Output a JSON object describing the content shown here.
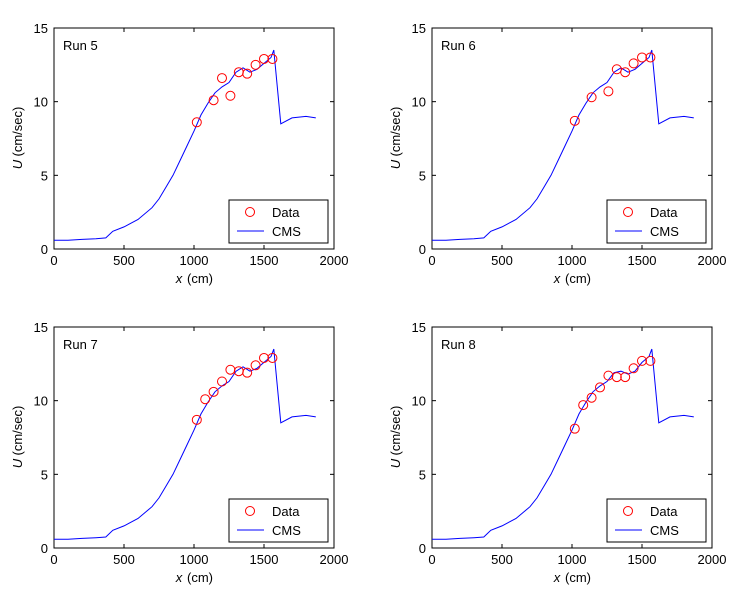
{
  "colors": {
    "data_marker": "#ff0000",
    "model_line": "#0000ff",
    "axes": "#000000",
    "background": "#ffffff"
  },
  "chart_data": [
    {
      "type": "line",
      "title": "Run 5",
      "xlabel_var": "x",
      "xlabel_unit": "(cm)",
      "ylabel_var": "U",
      "ylabel_unit": "(cm/sec)",
      "xlim": [
        0,
        2000
      ],
      "ylim": [
        0,
        15
      ],
      "xticks": [
        0,
        500,
        1000,
        1500,
        2000
      ],
      "yticks": [
        0,
        5,
        10,
        15
      ],
      "grid": false,
      "legend": {
        "position": "bottom-right",
        "entries": [
          "Data",
          "CMS"
        ]
      },
      "series": [
        {
          "name": "Data",
          "kind": "scatter",
          "marker": "circle",
          "x": [
            1020,
            1140,
            1200,
            1260,
            1320,
            1380,
            1440,
            1500,
            1560
          ],
          "y": [
            8.6,
            10.1,
            11.6,
            10.4,
            12.0,
            11.9,
            12.5,
            12.9,
            12.9
          ]
        },
        {
          "name": "CMS",
          "kind": "line",
          "x": [
            0,
            100,
            200,
            300,
            370,
            420,
            500,
            600,
            700,
            750,
            800,
            850,
            900,
            950,
            1000,
            1050,
            1100,
            1150,
            1200,
            1250,
            1300,
            1350,
            1400,
            1450,
            1500,
            1550,
            1570,
            1590,
            1620,
            1700,
            1800,
            1870
          ],
          "y": [
            0.6,
            0.6,
            0.65,
            0.7,
            0.75,
            1.2,
            1.5,
            2.0,
            2.8,
            3.4,
            4.2,
            5.0,
            6.0,
            7.0,
            8.0,
            9.1,
            9.9,
            10.6,
            11.0,
            11.3,
            12.0,
            12.3,
            12.0,
            12.2,
            12.6,
            13.0,
            13.5,
            11.5,
            8.5,
            8.9,
            9.0,
            8.9
          ]
        }
      ]
    },
    {
      "type": "line",
      "title": "Run 6",
      "xlabel_var": "x",
      "xlabel_unit": "(cm)",
      "ylabel_var": "U",
      "ylabel_unit": "(cm/sec)",
      "xlim": [
        0,
        2000
      ],
      "ylim": [
        0,
        15
      ],
      "xticks": [
        0,
        500,
        1000,
        1500,
        2000
      ],
      "yticks": [
        0,
        5,
        10,
        15
      ],
      "grid": false,
      "legend": {
        "position": "bottom-right",
        "entries": [
          "Data",
          "CMS"
        ]
      },
      "series": [
        {
          "name": "Data",
          "kind": "scatter",
          "marker": "circle",
          "x": [
            1020,
            1140,
            1260,
            1320,
            1380,
            1440,
            1500,
            1560
          ],
          "y": [
            8.7,
            10.3,
            10.7,
            12.2,
            12.0,
            12.6,
            13.0,
            13.0
          ]
        },
        {
          "name": "CMS",
          "kind": "line",
          "x": [
            0,
            100,
            200,
            300,
            370,
            420,
            500,
            600,
            700,
            750,
            800,
            850,
            900,
            950,
            1000,
            1050,
            1100,
            1150,
            1200,
            1250,
            1300,
            1350,
            1400,
            1450,
            1500,
            1550,
            1570,
            1590,
            1620,
            1700,
            1800,
            1870
          ],
          "y": [
            0.6,
            0.6,
            0.65,
            0.7,
            0.75,
            1.2,
            1.5,
            2.0,
            2.8,
            3.4,
            4.2,
            5.0,
            6.0,
            7.0,
            8.0,
            9.1,
            9.9,
            10.6,
            11.0,
            11.3,
            12.0,
            12.3,
            12.0,
            12.2,
            12.6,
            13.0,
            13.5,
            11.5,
            8.5,
            8.9,
            9.0,
            8.9
          ]
        }
      ]
    },
    {
      "type": "line",
      "title": "Run 7",
      "xlabel_var": "x",
      "xlabel_unit": "(cm)",
      "ylabel_var": "U",
      "ylabel_unit": "(cm/sec)",
      "xlim": [
        0,
        2000
      ],
      "ylim": [
        0,
        15
      ],
      "xticks": [
        0,
        500,
        1000,
        1500,
        2000
      ],
      "yticks": [
        0,
        5,
        10,
        15
      ],
      "grid": false,
      "legend": {
        "position": "bottom-right",
        "entries": [
          "Data",
          "CMS"
        ]
      },
      "series": [
        {
          "name": "Data",
          "kind": "scatter",
          "marker": "circle",
          "x": [
            1020,
            1080,
            1140,
            1200,
            1260,
            1320,
            1380,
            1440,
            1500,
            1560
          ],
          "y": [
            8.7,
            10.1,
            10.6,
            11.3,
            12.1,
            12.0,
            11.9,
            12.4,
            12.9,
            12.9
          ]
        },
        {
          "name": "CMS",
          "kind": "line",
          "x": [
            0,
            100,
            200,
            300,
            370,
            420,
            500,
            600,
            700,
            750,
            800,
            850,
            900,
            950,
            1000,
            1050,
            1100,
            1150,
            1200,
            1250,
            1300,
            1350,
            1400,
            1450,
            1500,
            1550,
            1570,
            1590,
            1620,
            1700,
            1800,
            1870
          ],
          "y": [
            0.6,
            0.6,
            0.65,
            0.7,
            0.75,
            1.2,
            1.5,
            2.0,
            2.8,
            3.4,
            4.2,
            5.0,
            6.0,
            7.0,
            8.0,
            9.1,
            9.9,
            10.6,
            11.0,
            11.3,
            12.0,
            12.3,
            12.0,
            12.2,
            12.6,
            13.0,
            13.5,
            11.5,
            8.5,
            8.9,
            9.0,
            8.9
          ]
        }
      ]
    },
    {
      "type": "line",
      "title": "Run 8",
      "xlabel_var": "x",
      "xlabel_unit": "(cm)",
      "ylabel_var": "U",
      "ylabel_unit": "(cm/sec)",
      "xlim": [
        0,
        2000
      ],
      "ylim": [
        0,
        15
      ],
      "xticks": [
        0,
        500,
        1000,
        1500,
        2000
      ],
      "yticks": [
        0,
        5,
        10,
        15
      ],
      "grid": false,
      "legend": {
        "position": "bottom-right",
        "entries": [
          "Data",
          "CMS"
        ]
      },
      "series": [
        {
          "name": "Data",
          "kind": "scatter",
          "marker": "circle",
          "x": [
            1020,
            1080,
            1140,
            1200,
            1260,
            1320,
            1380,
            1440,
            1500,
            1560
          ],
          "y": [
            8.1,
            9.7,
            10.2,
            10.9,
            11.7,
            11.6,
            11.6,
            12.2,
            12.7,
            12.7
          ]
        },
        {
          "name": "CMS",
          "kind": "line",
          "x": [
            0,
            100,
            200,
            300,
            370,
            420,
            500,
            600,
            700,
            750,
            800,
            850,
            900,
            950,
            1000,
            1050,
            1100,
            1150,
            1200,
            1250,
            1300,
            1350,
            1400,
            1450,
            1500,
            1550,
            1570,
            1590,
            1620,
            1700,
            1800,
            1870
          ],
          "y": [
            0.6,
            0.6,
            0.65,
            0.7,
            0.75,
            1.2,
            1.5,
            2.0,
            2.8,
            3.4,
            4.2,
            5.0,
            6.0,
            7.0,
            8.0,
            9.1,
            9.9,
            10.6,
            11.0,
            11.3,
            11.9,
            12.0,
            11.8,
            12.0,
            12.6,
            13.0,
            13.5,
            11.5,
            8.5,
            8.9,
            9.0,
            8.9
          ]
        }
      ]
    }
  ]
}
